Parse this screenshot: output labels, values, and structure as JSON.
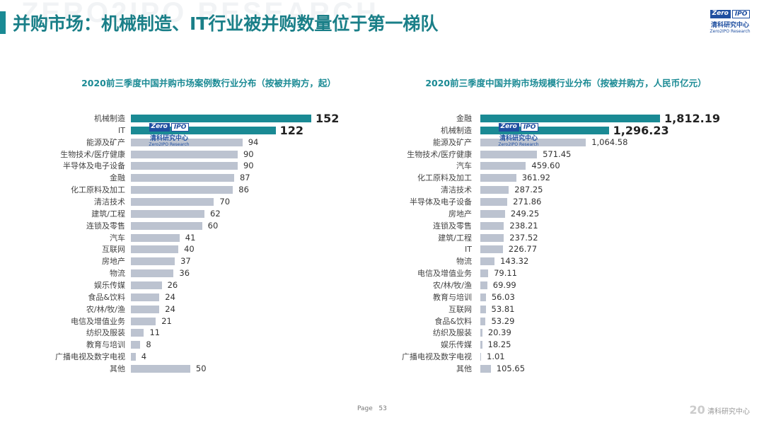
{
  "header": {
    "title": "并购市场：机械制造、IT行业被并购数量位于第一梯队",
    "watermark": "ZERO2IPO RESEARCH",
    "logo": {
      "left": "Zero",
      "right": "IPO",
      "cn": "清科研究中心",
      "en": "Zero2IPO Research"
    }
  },
  "footer": {
    "page_label": "Page",
    "page_number": "53",
    "logo_num": "20",
    "logo_text": "清科研究中心"
  },
  "colors": {
    "highlight": "#1a8a94",
    "bar": "#bcc3d0",
    "title": "#1a7f88"
  },
  "chart_data": [
    {
      "type": "bar",
      "orientation": "horizontal",
      "title": "2020前三季度中国并购市场案例数行业分布（按被并购方，起）",
      "categories": [
        "机械制造",
        "IT",
        "能源及矿产",
        "生物技术/医疗健康",
        "半导体及电子设备",
        "金融",
        "化工原料及加工",
        "清洁技术",
        "建筑/工程",
        "连锁及零售",
        "汽车",
        "互联网",
        "房地产",
        "物流",
        "娱乐传媒",
        "食品&饮料",
        "农/林/牧/渔",
        "电信及增值业务",
        "纺织及服装",
        "教育与培训",
        "广播电视及数字电视",
        "其他"
      ],
      "values": [
        152,
        122,
        94,
        90,
        90,
        87,
        86,
        70,
        62,
        60,
        41,
        40,
        37,
        36,
        26,
        24,
        24,
        21,
        11,
        8,
        4,
        50
      ],
      "labels": [
        "152",
        "122",
        "94",
        "90",
        "90",
        "87",
        "86",
        "70",
        "62",
        "60",
        "41",
        "40",
        "37",
        "36",
        "26",
        "24",
        "24",
        "21",
        "11",
        "8",
        "4",
        "50"
      ],
      "highlighted": [
        0,
        1
      ]
    },
    {
      "type": "bar",
      "orientation": "horizontal",
      "title": "2020前三季度中国并购市场规模行业分布（按被并购方，人民币亿元）",
      "categories": [
        "金融",
        "机械制造",
        "能源及矿产",
        "生物技术/医疗健康",
        "汽车",
        "化工原料及加工",
        "清洁技术",
        "半导体及电子设备",
        "房地产",
        "连锁及零售",
        "建筑/工程",
        "IT",
        "物流",
        "电信及增值业务",
        "农/林/牧/渔",
        "教育与培训",
        "互联网",
        "食品&饮料",
        "纺织及服装",
        "娱乐传媒",
        "广播电视及数字电视",
        "其他"
      ],
      "values": [
        1812.19,
        1296.23,
        1064.58,
        571.45,
        459.6,
        361.92,
        287.25,
        271.86,
        249.25,
        238.21,
        237.52,
        226.77,
        143.32,
        79.11,
        69.99,
        56.03,
        53.81,
        53.29,
        20.39,
        18.25,
        1.01,
        105.65
      ],
      "labels": [
        "1,812.19",
        "1,296.23",
        "1,064.58",
        "571.45",
        "459.60",
        "361.92",
        "287.25",
        "271.86",
        "249.25",
        "238.21",
        "237.52",
        "226.77",
        "143.32",
        "79.11",
        "69.99",
        "56.03",
        "53.81",
        "53.29",
        "20.39",
        "18.25",
        "1.01",
        "105.65"
      ],
      "highlighted": [
        0,
        1
      ]
    }
  ]
}
